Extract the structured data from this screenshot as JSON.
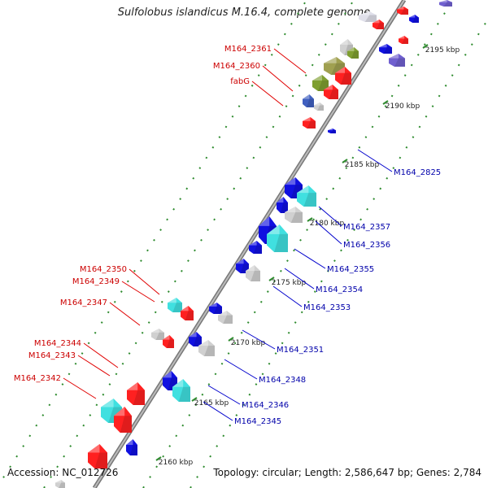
{
  "title": "Sulfolobus islandicus M.16.4, complete genome",
  "footer": {
    "accession": "Accession: NC_012726",
    "summary": "Topology: circular; Length: 2,586,647 bp; Genes: 2,784"
  },
  "colors": {
    "forward_label": "#cc0000",
    "reverse_label": "#0000aa",
    "axis": "#888888",
    "tick": "#339933"
  },
  "scale_ticks": [
    {
      "label": "2160 kbp"
    },
    {
      "label": "2165 kbp"
    },
    {
      "label": "2170 kbp"
    },
    {
      "label": "2175 kbp"
    },
    {
      "label": "2180 kbp"
    },
    {
      "label": "2185 kbp"
    },
    {
      "label": "2190 kbp"
    },
    {
      "label": "2195 kbp"
    }
  ],
  "forward_labels": [
    {
      "text": "M164_2361"
    },
    {
      "text": "M164_2360"
    },
    {
      "text": "fabG"
    },
    {
      "text": "M164_2350"
    },
    {
      "text": "M164_2349"
    },
    {
      "text": "M164_2347"
    },
    {
      "text": "M164_2344"
    },
    {
      "text": "M164_2343"
    },
    {
      "text": "M164_2342"
    }
  ],
  "reverse_labels": [
    {
      "text": "M164_2825"
    },
    {
      "text": "M164_2357"
    },
    {
      "text": "M164_2356"
    },
    {
      "text": "M164_2355"
    },
    {
      "text": "M164_2354"
    },
    {
      "text": "M164_2353"
    },
    {
      "text": "M164_2351"
    },
    {
      "text": "M164_2348"
    },
    {
      "text": "M164_2346"
    },
    {
      "text": "M164_2345"
    }
  ]
}
